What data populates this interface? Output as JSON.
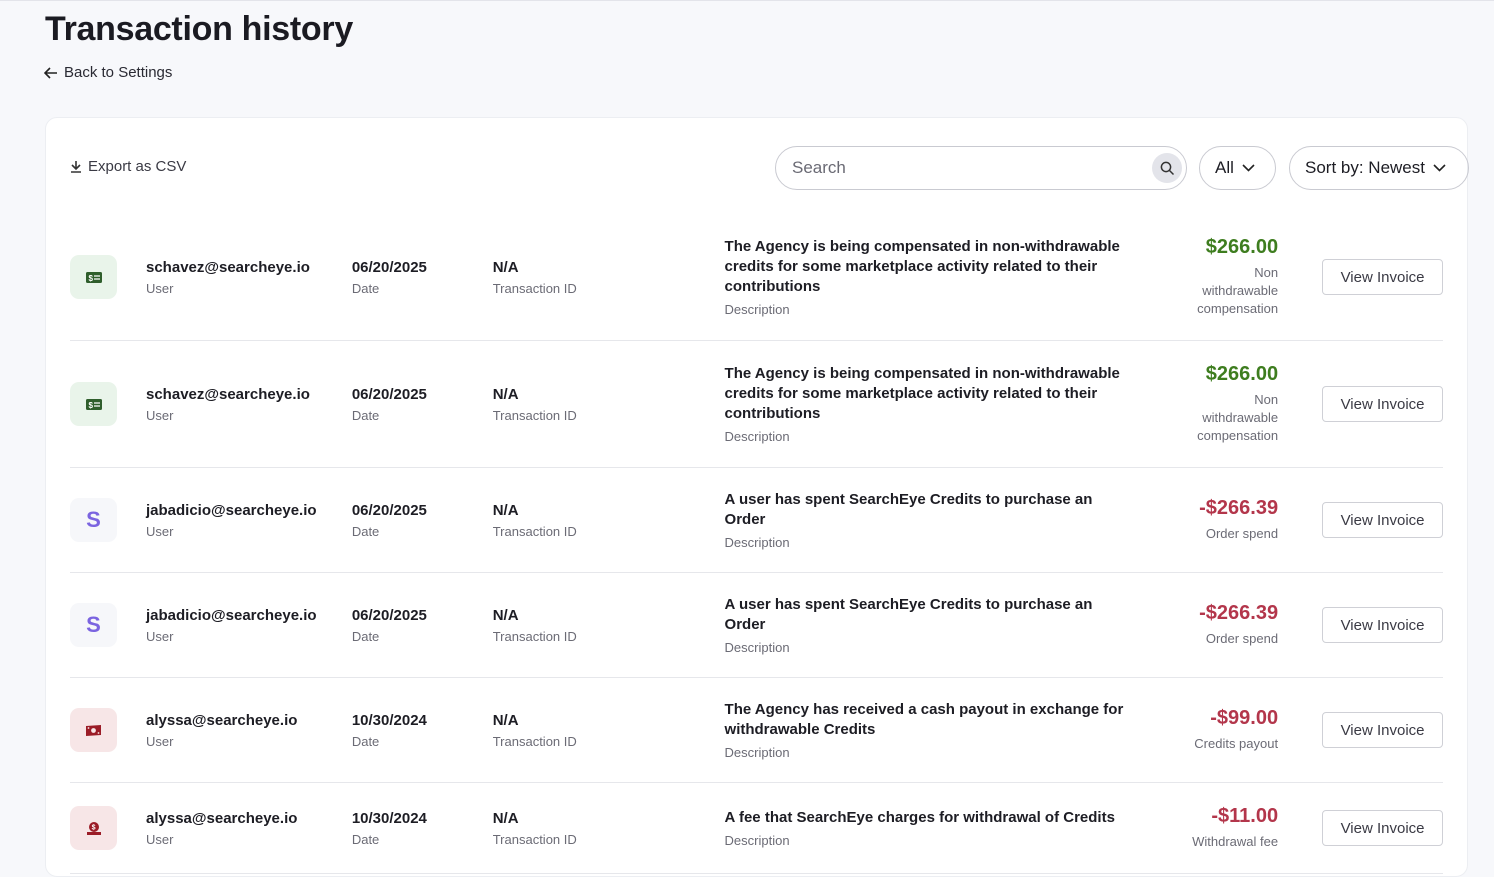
{
  "header": {
    "title": "Transaction history",
    "back_label": "Back to Settings"
  },
  "toolbar": {
    "export_label": "Export as CSV",
    "search_placeholder": "Search",
    "filter_label": "All",
    "sort_label": "Sort by: Newest"
  },
  "colors": {
    "positive": "#3e7d1f",
    "negative": "#b3364b"
  },
  "labels": {
    "user": "User",
    "date": "Date",
    "transaction_id": "Transaction ID",
    "description": "Description",
    "view_invoice": "View Invoice"
  },
  "transactions": [
    {
      "icon": "credit-card-icon",
      "user": "schavez@searcheye.io",
      "date": "06/20/2025",
      "transaction_id": "N/A",
      "description": "The Agency is being compensated in non-withdrawable credits for some marketplace activity related to their contributions",
      "amount": "$266.00",
      "type": "Non withdrawable compensation",
      "sign": "positive"
    },
    {
      "icon": "credit-card-icon",
      "user": "schavez@searcheye.io",
      "date": "06/20/2025",
      "transaction_id": "N/A",
      "description": "The Agency is being compensated in non-withdrawable credits for some marketplace activity related to their contributions",
      "amount": "$266.00",
      "type": "Non withdrawable compensation",
      "sign": "positive"
    },
    {
      "icon": "searcheye-s-icon",
      "user": "jabadicio@searcheye.io",
      "date": "06/20/2025",
      "transaction_id": "N/A",
      "description": "A user has spent SearchEye Credits to purchase an Order",
      "amount": "-$266.39",
      "type": "Order spend",
      "sign": "negative"
    },
    {
      "icon": "searcheye-s-icon",
      "user": "jabadicio@searcheye.io",
      "date": "06/20/2025",
      "transaction_id": "N/A",
      "description": "A user has spent SearchEye Credits to purchase an Order",
      "amount": "-$266.39",
      "type": "Order spend",
      "sign": "negative"
    },
    {
      "icon": "cash-icon",
      "user": "alyssa@searcheye.io",
      "date": "10/30/2024",
      "transaction_id": "N/A",
      "description": "The Agency has received a cash payout in exchange for withdrawable Credits",
      "amount": "-$99.00",
      "type": "Credits payout",
      "sign": "negative"
    },
    {
      "icon": "coin-hand-icon",
      "user": "alyssa@searcheye.io",
      "date": "10/30/2024",
      "transaction_id": "N/A",
      "description": "A fee that SearchEye charges for withdrawal of Credits",
      "amount": "-$11.00",
      "type": "Withdrawal fee",
      "sign": "negative"
    }
  ]
}
